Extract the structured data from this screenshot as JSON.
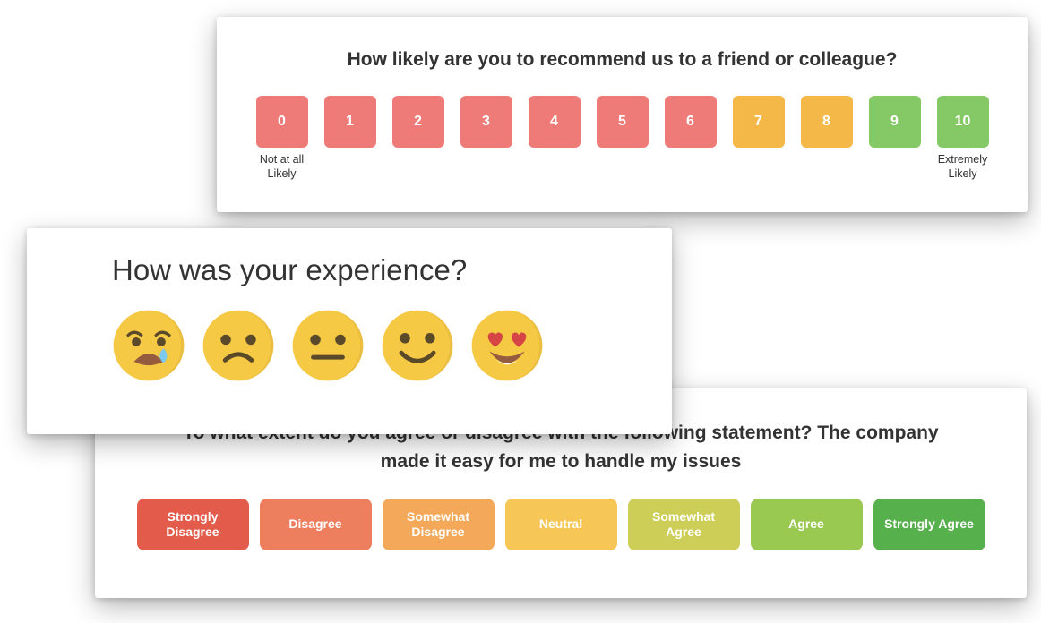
{
  "nps": {
    "question": "How likely are you to recommend us to a friend or colleague?",
    "low_caption": "Not at all Likely",
    "high_caption": "Extremely Likely",
    "items": [
      {
        "label": "0",
        "color": "#ef7b78"
      },
      {
        "label": "1",
        "color": "#ef7b78"
      },
      {
        "label": "2",
        "color": "#ef7b78"
      },
      {
        "label": "3",
        "color": "#ef7b78"
      },
      {
        "label": "4",
        "color": "#ef7b78"
      },
      {
        "label": "5",
        "color": "#ef7b78"
      },
      {
        "label": "6",
        "color": "#ef7b78"
      },
      {
        "label": "7",
        "color": "#f3b848"
      },
      {
        "label": "8",
        "color": "#f3b848"
      },
      {
        "label": "9",
        "color": "#84c965"
      },
      {
        "label": "10",
        "color": "#84c965"
      }
    ]
  },
  "experience": {
    "question": "How was your experience?",
    "face_fill": "#f6c945",
    "face_shadow": "#e0b73e",
    "dark": "#5b4a2a",
    "mouth_dark": "#955b3e",
    "tear": "#7bc8f0",
    "heart": "#d64545",
    "options": [
      {
        "name": "crying",
        "label": "Very Bad"
      },
      {
        "name": "sad",
        "label": "Bad"
      },
      {
        "name": "neutral",
        "label": "Neutral"
      },
      {
        "name": "happy",
        "label": "Good"
      },
      {
        "name": "love",
        "label": "Excellent"
      }
    ]
  },
  "likert": {
    "question": "To what extent do you agree or disagree with the following statement? The company made it easy for me to handle my issues",
    "options": [
      {
        "label": "Strongly Disagree",
        "color": "#e25b4b"
      },
      {
        "label": "Disagree",
        "color": "#ee7f5e"
      },
      {
        "label": "Somewhat Disagree",
        "color": "#f4a95a"
      },
      {
        "label": "Neutral",
        "color": "#f6c756"
      },
      {
        "label": "Somewhat Agree",
        "color": "#cdce57"
      },
      {
        "label": "Agree",
        "color": "#9ac951"
      },
      {
        "label": "Strongly Agree",
        "color": "#56b04c"
      }
    ]
  }
}
